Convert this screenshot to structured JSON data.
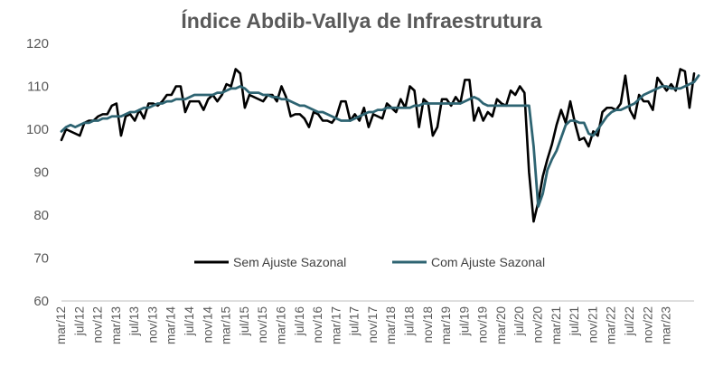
{
  "chart_data": {
    "type": "line",
    "title": "Índice Abdib-Vallya de Infraestrutura",
    "xlabel": "",
    "ylabel": "",
    "ylim": [
      60,
      120
    ],
    "yticks": [
      60,
      70,
      80,
      90,
      100,
      110,
      120
    ],
    "grid": false,
    "legend_position": "bottom-center",
    "x_tick_labels": [
      "mar/12",
      "jul/12",
      "nov/12",
      "mar/13",
      "jul/13",
      "nov/13",
      "mar/14",
      "jul/14",
      "nov/14",
      "mar/15",
      "jul/15",
      "nov/15",
      "mar/16",
      "jul/16",
      "nov/16",
      "mar/17",
      "jul/17",
      "nov/17",
      "mar/18",
      "jul/18",
      "nov/18",
      "mar/19",
      "jul/19",
      "nov/19",
      "mar/20",
      "jul/20",
      "nov/20",
      "mar/21",
      "jul/21",
      "nov/21",
      "mar/22",
      "jul/22",
      "nov/22",
      "mar/23"
    ],
    "x_start": "mar/12",
    "x_step_months": 1,
    "series": [
      {
        "name": "Sem Ajuste Sazonal",
        "color": "#000000",
        "values": [
          97.5,
          100,
          99.5,
          99,
          98.5,
          101.5,
          102,
          102,
          103,
          103.5,
          103.5,
          105.5,
          106,
          98.5,
          103,
          103.5,
          102,
          104.5,
          102.5,
          106,
          106,
          105.5,
          106.5,
          108,
          108,
          110,
          110,
          104,
          106.5,
          106.5,
          106.5,
          104.5,
          107,
          108,
          106.5,
          108,
          110.5,
          110,
          114,
          113,
          105,
          108,
          107.5,
          107,
          106.5,
          108,
          108,
          106.5,
          110,
          107.5,
          103,
          103.5,
          103.5,
          102.5,
          100.5,
          104,
          103.5,
          102,
          102,
          101.5,
          103,
          106.5,
          106.5,
          102,
          103.5,
          102,
          105,
          100.5,
          103.5,
          103,
          102.5,
          106,
          105,
          104,
          107,
          105,
          110,
          109,
          100.5,
          107,
          106,
          98.5,
          100.5,
          107,
          107,
          105.5,
          107.5,
          106,
          111.5,
          111.5,
          102,
          105,
          102,
          104,
          103,
          107,
          106,
          105.5,
          109,
          108,
          110,
          108.5,
          90,
          78.5,
          83,
          89,
          93,
          96.5,
          101,
          104.5,
          101.5,
          106.5,
          101.5,
          97.5,
          98,
          96,
          99.5,
          98.5,
          104,
          105,
          105,
          104.5,
          106,
          112.5,
          104.5,
          102.5,
          108,
          106.5,
          106.5,
          104.5,
          112,
          110.5,
          109,
          110.5,
          109,
          114,
          113.5,
          105,
          113
        ]
      },
      {
        "name": "Com Ajuste Sazonal",
        "color": "#2e6472",
        "values": [
          99.5,
          100.5,
          101,
          100.5,
          101,
          101.5,
          101.5,
          102,
          102,
          102.5,
          102.5,
          103,
          103,
          103,
          103.5,
          104,
          104,
          104.5,
          105,
          105,
          105.5,
          106,
          106,
          106.5,
          106.5,
          107,
          107,
          107,
          107.5,
          108,
          108,
          108,
          108,
          108,
          108.5,
          108.5,
          109,
          109.5,
          109.5,
          110,
          109.5,
          108.5,
          108.5,
          108.5,
          108,
          108,
          107.5,
          107.5,
          107,
          107,
          106.5,
          106,
          105.5,
          105.5,
          105,
          104.5,
          104,
          104,
          103.5,
          103,
          102.5,
          102,
          102,
          102,
          102.5,
          103,
          103.5,
          104,
          104,
          104.5,
          104.5,
          105,
          105,
          105,
          105,
          105,
          105,
          105.5,
          105.5,
          106,
          106,
          106,
          106,
          106,
          106,
          106,
          106,
          106,
          106.5,
          107,
          107.5,
          107,
          106,
          105.5,
          105.5,
          105.5,
          105.5,
          105.5,
          105.5,
          105.5,
          105.5,
          105.5,
          105.5,
          96,
          82,
          85,
          90.5,
          93,
          95,
          98,
          101,
          102,
          102,
          101.5,
          101.5,
          99,
          98.5,
          100,
          101.5,
          103,
          104,
          104.5,
          104.5,
          105,
          105.5,
          106,
          107,
          108,
          108.5,
          109,
          109.5,
          110,
          110,
          109.5,
          109.5,
          109.5,
          110,
          110.5,
          111,
          112.5
        ]
      }
    ]
  }
}
